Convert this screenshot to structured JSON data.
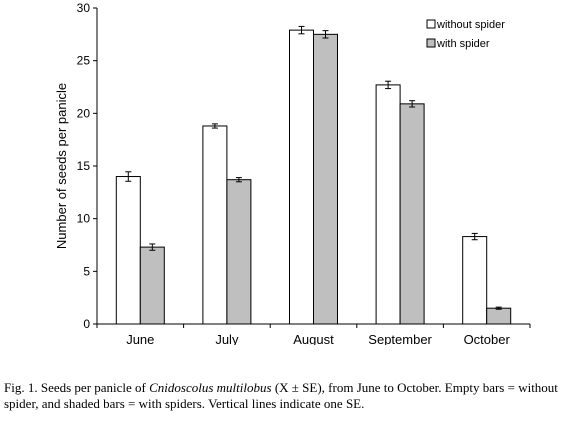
{
  "chart_data": {
    "type": "bar",
    "categories": [
      "June",
      "July",
      "August",
      "September",
      "October"
    ],
    "series": [
      {
        "name": "without spider",
        "color": "#ffffff",
        "values": [
          14.0,
          18.8,
          27.9,
          22.7,
          8.3
        ],
        "se": [
          0.45,
          0.2,
          0.35,
          0.35,
          0.3
        ]
      },
      {
        "name": "with spider",
        "color": "#bfbfbf",
        "values": [
          7.3,
          13.7,
          27.5,
          20.9,
          1.5
        ],
        "se": [
          0.3,
          0.2,
          0.35,
          0.3,
          0.1
        ]
      }
    ],
    "ylabel": "Number of seeds per panicle",
    "xlabel": "",
    "ylim": [
      0,
      30
    ],
    "yticks": [
      0,
      5,
      10,
      15,
      20,
      25,
      30
    ],
    "legend_position": "top-right",
    "grid": false
  },
  "caption": {
    "prefix": "Fig. 1. Seeds per panicle of ",
    "species": "Cnidoscolus multilobus",
    "suffix": " (X ± SE), from June to October. Empty bars = without spider, and shaded bars = with spiders. Vertical lines indicate one SE."
  }
}
